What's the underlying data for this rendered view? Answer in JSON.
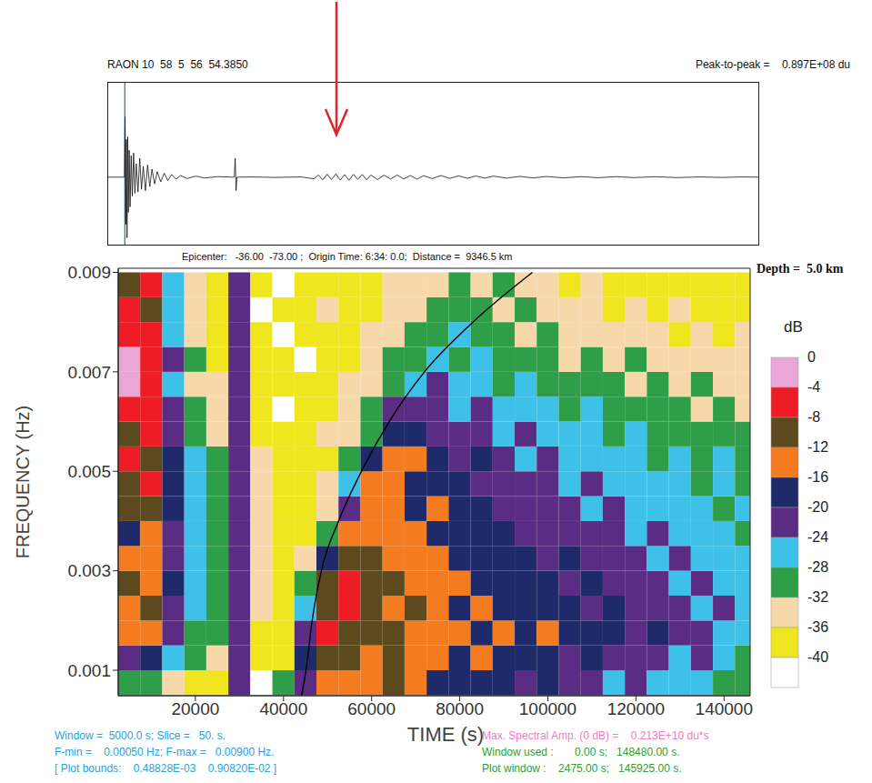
{
  "chart_data": [
    {
      "type": "line",
      "title": "RAON 10  58  5  56  54.3850",
      "subtitle": "Peak-to-peak =    0.897E+08 du",
      "color": "#111111",
      "tick_labels": false,
      "xlim": [
        0,
        148480
      ],
      "ylim": [
        -50000000,
        70000000
      ],
      "marker_time": 3800,
      "x": [
        0,
        3700,
        3850,
        4000,
        4150,
        4300,
        4450,
        4600,
        4800,
        5000,
        5250,
        5500,
        5800,
        6100,
        6400,
        6800,
        7200,
        7600,
        8000,
        8500,
        9000,
        9500,
        10000,
        10600,
        11200,
        12000,
        12800,
        13600,
        14500,
        15500,
        16500,
        18000,
        20000,
        22000,
        25000,
        28800,
        29000,
        29200,
        29400,
        33000,
        38000,
        44000,
        47000,
        48000,
        49000,
        50000,
        51000,
        52000,
        53000,
        54000,
        55000,
        56000,
        57000,
        58000,
        59000,
        60000,
        61500,
        63000,
        64500,
        66000,
        67500,
        69000,
        70500,
        72000,
        74000,
        76000,
        78000,
        80000,
        82000,
        84000,
        86000,
        88000,
        91000,
        94000,
        97000,
        100000,
        104000,
        108000,
        112000,
        116000,
        120000,
        125000,
        130000,
        135000,
        140000,
        145000,
        148480
      ],
      "values": [
        0,
        0,
        44700000.0,
        -35000000.0,
        28000000.0,
        -45000000.0,
        30000000.0,
        -26000000.0,
        20000000.0,
        -22000000.0,
        16000000.0,
        -14000000.0,
        18000000.0,
        -12000000.0,
        10000000.0,
        -11000000.0,
        14000000.0,
        -9000000.0,
        8000000.0,
        -10000000.0,
        9000000.0,
        -7000000.0,
        6000000.0,
        -5000000.0,
        4000000.0,
        -3500000.0,
        3000000.0,
        -2500000.0,
        2000000.0,
        -1500000.0,
        1200000.0,
        -1000000.0,
        800000.0,
        -600000.0,
        400000.0,
        0,
        14000000.0,
        -10000000.0,
        0,
        200000.0,
        -200000.0,
        200000.0,
        -1200000.0,
        1600000.0,
        -2000000.0,
        2200000.0,
        -1800000.0,
        2400000.0,
        -2200000.0,
        1900000.0,
        -2300000.0,
        2100000.0,
        -1700000.0,
        2000000.0,
        -1900000.0,
        1600000.0,
        -1800000.0,
        1500000.0,
        -1400000.0,
        1600000.0,
        -1300000.0,
        1200000.0,
        -1400000.0,
        1100000.0,
        -1000000.0,
        1200000.0,
        -900000.0,
        1000000.0,
        -800000.0,
        900000.0,
        -700000.0,
        800000.0,
        -700000.0,
        600000.0,
        -600000.0,
        500000.0,
        -500000.0,
        400000.0,
        -400000.0,
        400000.0,
        -300000.0,
        300000.0,
        -300000.0,
        200000.0,
        -200000.0,
        200000.0,
        0
      ]
    },
    {
      "type": "heatmap",
      "title": "Epicenter:   -36.00  -73.00 ;  Origin Time: 6:34: 0.0;  Distance =  9346.5 km",
      "subtitle": "Depth =  5.0 km",
      "x_label": "TIME (s)",
      "y_label": "FREQUENCY (Hz)",
      "xlim": [
        2475,
        145925
      ],
      "ylim": [
        0.00048828,
        0.009082
      ],
      "xticks": [
        20000,
        40000,
        60000,
        80000,
        100000,
        120000,
        140000
      ],
      "yticks": [
        0.001,
        0.003,
        0.005,
        0.007,
        0.009
      ],
      "time_edges": [
        2475,
        7475,
        12475,
        17475,
        22475,
        27475,
        32475,
        37475,
        42475,
        47475,
        52475,
        57475,
        62475,
        67475,
        72475,
        77475,
        82475,
        87475,
        92475,
        97475,
        102475,
        107475,
        112475,
        117475,
        122475,
        127475,
        132475,
        137475,
        142475,
        147475
      ],
      "freq_edges": [
        0.0005,
        0.001,
        0.0015,
        0.002,
        0.0025,
        0.003,
        0.0035,
        0.004,
        0.0045,
        0.005,
        0.0055,
        0.006,
        0.0065,
        0.007,
        0.0075,
        0.008,
        0.0085,
        0.009
      ],
      "cells": [
        [
          -30,
          -28,
          -34,
          -36,
          -38,
          -22,
          -40,
          -30,
          -20,
          -14,
          -12,
          -14,
          -10,
          -12,
          -16,
          -18,
          -16,
          -18,
          -20,
          -18,
          -22,
          -20,
          -24,
          -22,
          -26,
          -24,
          -26,
          -28,
          -30
        ],
        [
          -22,
          -18,
          -26,
          -30,
          -34,
          -22,
          -38,
          -36,
          -18,
          -10,
          -8,
          -12,
          -10,
          -12,
          -14,
          -16,
          -14,
          -18,
          -16,
          -18,
          -20,
          -18,
          -22,
          -20,
          -22,
          -24,
          -22,
          -26,
          -28
        ],
        [
          -14,
          -12,
          -22,
          -28,
          -30,
          -21,
          -36,
          -38,
          -22,
          -6,
          -8,
          -10,
          -8,
          -12,
          -14,
          -14,
          -16,
          -14,
          -16,
          -14,
          -18,
          -16,
          -18,
          -20,
          -18,
          -22,
          -20,
          -24,
          -24
        ],
        [
          -12,
          -10,
          -20,
          -26,
          -30,
          -21,
          -34,
          -36,
          -26,
          -8,
          -6,
          -10,
          -12,
          -10,
          -14,
          -16,
          -14,
          -16,
          -18,
          -16,
          -18,
          -20,
          -18,
          -22,
          -20,
          -22,
          -24,
          -22,
          -26
        ],
        [
          -10,
          -12,
          -18,
          -26,
          -28,
          -20,
          -32,
          -36,
          -30,
          -10,
          -6,
          -8,
          -10,
          -12,
          -14,
          -14,
          -16,
          -18,
          -16,
          -18,
          -20,
          -18,
          -22,
          -20,
          -22,
          -24,
          -22,
          -26,
          -24
        ],
        [
          -14,
          -12,
          -20,
          -24,
          -30,
          -21,
          -34,
          -38,
          -34,
          -16,
          -8,
          -10,
          -12,
          -14,
          -12,
          -16,
          -18,
          -16,
          -18,
          -20,
          -18,
          -22,
          -20,
          -22,
          -24,
          -22,
          -24,
          -26,
          -26
        ],
        [
          -16,
          -14,
          -20,
          -26,
          -28,
          -22,
          -32,
          -36,
          -36,
          -28,
          -12,
          -12,
          -14,
          -12,
          -16,
          -18,
          -16,
          -18,
          -20,
          -20,
          -22,
          -20,
          -22,
          -24,
          -22,
          -24,
          -26,
          -24,
          -28
        ],
        [
          -10,
          -8,
          -18,
          -24,
          -30,
          -21,
          -34,
          -38,
          -36,
          -32,
          -20,
          -12,
          -14,
          -16,
          -14,
          -18,
          -18,
          -20,
          -22,
          -20,
          -22,
          -24,
          -22,
          -24,
          -26,
          -24,
          -26,
          -28,
          -26
        ],
        [
          -8,
          -6,
          -16,
          -24,
          -28,
          -20,
          -32,
          -36,
          -38,
          -34,
          -26,
          -14,
          -12,
          -16,
          -18,
          -16,
          -20,
          -22,
          -20,
          -22,
          -24,
          -22,
          -24,
          -26,
          -24,
          -26,
          -28,
          -26,
          -28
        ],
        [
          -6,
          -8,
          -18,
          -26,
          -30,
          -21,
          -34,
          -38,
          -36,
          -36,
          -30,
          -18,
          -14,
          -14,
          -18,
          -20,
          -18,
          -22,
          -24,
          -22,
          -24,
          -26,
          -24,
          -26,
          -28,
          -26,
          -28,
          -26,
          -30
        ],
        [
          -8,
          -6,
          -20,
          -28,
          -32,
          -22,
          -36,
          -38,
          -38,
          -34,
          -32,
          -28,
          -16,
          -18,
          -20,
          -22,
          -20,
          -24,
          -22,
          -26,
          -24,
          -26,
          -28,
          -26,
          -28,
          -30,
          -28,
          -30,
          -28
        ],
        [
          -6,
          -4,
          -22,
          -30,
          -34,
          -22,
          -38,
          -40,
          -36,
          -36,
          -34,
          -30,
          -22,
          -20,
          -22,
          -24,
          -22,
          -24,
          -26,
          -24,
          -28,
          -26,
          -28,
          -30,
          -28,
          -30,
          -32,
          -30,
          -32
        ],
        [
          -2,
          -6,
          -24,
          -32,
          -34,
          -21,
          -38,
          -36,
          -38,
          -36,
          -34,
          -32,
          -28,
          -24,
          -22,
          -26,
          -24,
          -28,
          -26,
          -28,
          -30,
          -28,
          -30,
          -32,
          -30,
          -32,
          -30,
          -34,
          -32
        ],
        [
          -2,
          -4,
          -22,
          -30,
          -36,
          -22,
          -36,
          -38,
          -40,
          -38,
          -36,
          -34,
          -30,
          -28,
          -24,
          -28,
          -26,
          -28,
          -30,
          -28,
          -32,
          -30,
          -32,
          -30,
          -34,
          -32,
          -34,
          -32,
          -34
        ],
        [
          -4,
          -6,
          -24,
          -32,
          -36,
          -21,
          -38,
          -40,
          -38,
          -36,
          -38,
          -34,
          -32,
          -30,
          -28,
          -26,
          -30,
          -28,
          -32,
          -30,
          -32,
          -34,
          -32,
          -34,
          -32,
          -36,
          -34,
          -36,
          -34
        ],
        [
          -6,
          -8,
          -26,
          -34,
          -38,
          -22,
          -40,
          -38,
          -36,
          -34,
          -38,
          -36,
          -34,
          -32,
          -30,
          -28,
          -30,
          -32,
          -30,
          -34,
          -32,
          -34,
          -36,
          -34,
          -36,
          -34,
          -36,
          -38,
          -36
        ],
        [
          -8,
          -6,
          -24,
          -32,
          -36,
          -21,
          -38,
          -40,
          -36,
          -38,
          -36,
          -38,
          -34,
          -32,
          -34,
          -30,
          -32,
          -30,
          -34,
          -32,
          -36,
          -34,
          -36,
          -38,
          -36,
          -38,
          -36,
          -38,
          -38
        ]
      ],
      "color_scale": {
        "label": "dB",
        "range": [
          -40,
          0
        ],
        "ticks": [
          0,
          -4,
          -8,
          -12,
          -16,
          -20,
          -24,
          -28,
          -32,
          -36,
          -40
        ],
        "colors": [
          "#e9a6d6",
          "#ee1c24",
          "#5c4a1e",
          "#f47b20",
          "#1f2a6b",
          "#5a2c84",
          "#3ec1e9",
          "#2f9e48",
          "#f6d8aa",
          "#efe61f",
          "#ffffff"
        ]
      },
      "curve": {
        "x": [
          44100,
          45100,
          46500,
          48600,
          52500,
          57700,
          64000,
          72000,
          83000,
          96500
        ],
        "y": [
          0.00049,
          0.001,
          0.002,
          0.003,
          0.004,
          0.005,
          0.006,
          0.007,
          0.008,
          0.009
        ]
      },
      "annotations": [
        "Window =  5000.0 s; Slice =   50. s.",
        "F-min =    0.00050 Hz; F-max =   0.00900 Hz.",
        "[ Plot bounds:    0.48828E-03    0.90820E-02 ]",
        "Max. Spectral Amp. (0 dB) =    0.213E+10 du*s",
        "Window used :       0.00 s;   148480.00 s.",
        "Plot window :    2475.00 s;   145925.00 s."
      ]
    }
  ]
}
